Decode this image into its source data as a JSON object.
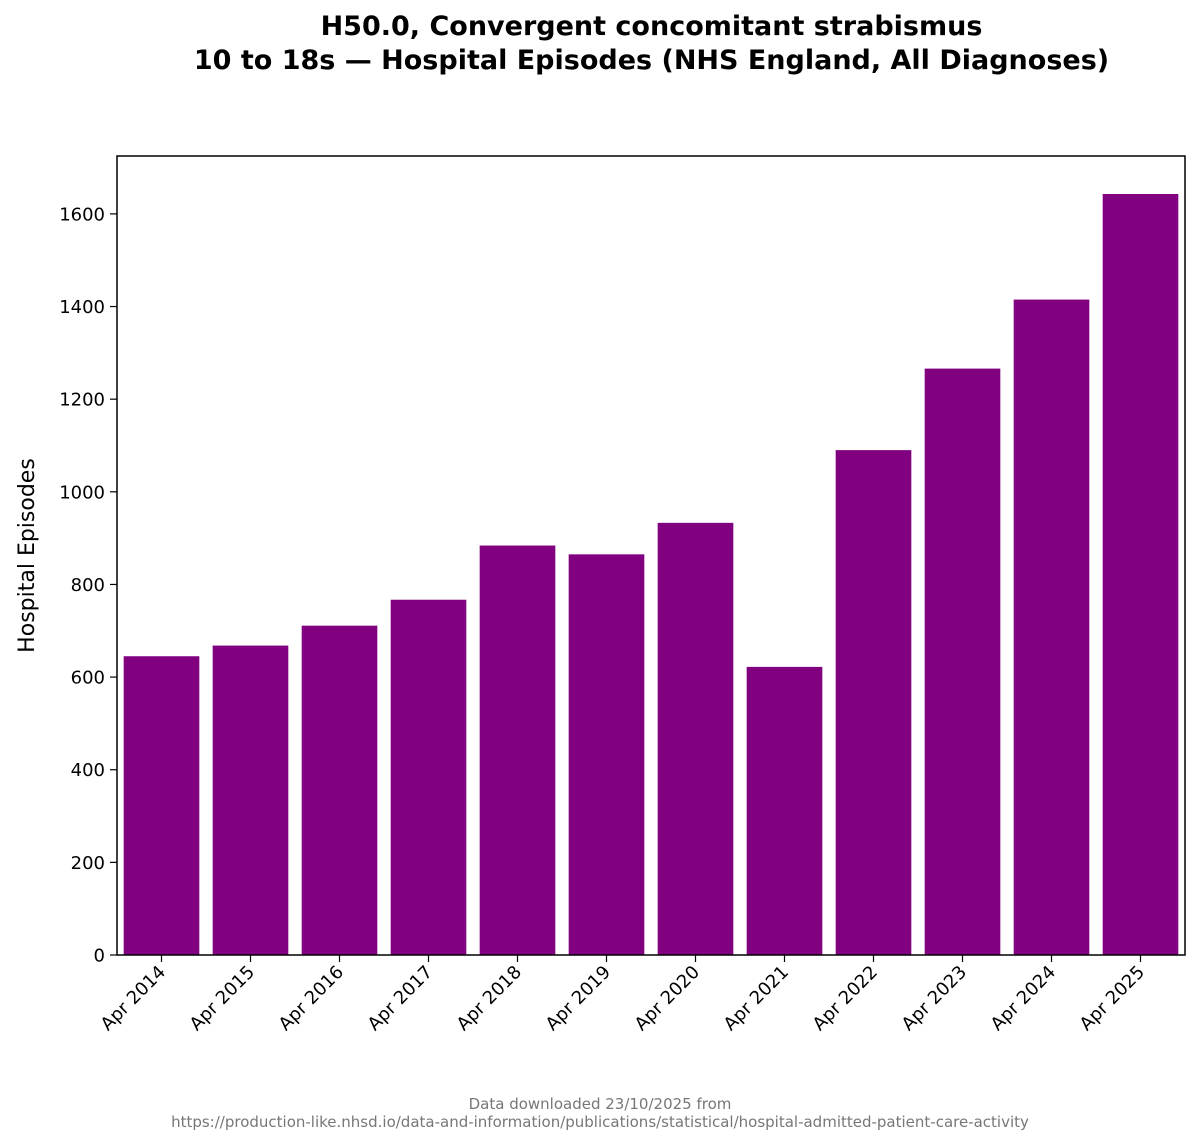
{
  "chart_data": {
    "type": "bar",
    "title_lines": [
      "H50.0, Convergent concomitant strabismus",
      "10 to 18s — Hospital Episodes (NHS England, All Diagnoses)"
    ],
    "xlabel": "",
    "ylabel": "Hospital Episodes",
    "categories": [
      "Apr 2014",
      "Apr 2015",
      "Apr 2016",
      "Apr 2017",
      "Apr 2018",
      "Apr 2019",
      "Apr 2020",
      "Apr 2021",
      "Apr 2022",
      "Apr 2023",
      "Apr 2024",
      "Apr 2025"
    ],
    "values": [
      645,
      668,
      711,
      767,
      884,
      865,
      933,
      622,
      1090,
      1266,
      1415,
      1643
    ],
    "ylim": [
      0,
      1725
    ],
    "yticks": [
      0,
      200,
      400,
      600,
      800,
      1000,
      1200,
      1400,
      1600
    ],
    "bar_color": "#800080",
    "grid": false
  },
  "footer": {
    "line1": "Data downloaded 23/10/2025 from",
    "line2": "https://production-like.nhsd.io/data-and-information/publications/statistical/hospital-admitted-patient-care-activity"
  }
}
